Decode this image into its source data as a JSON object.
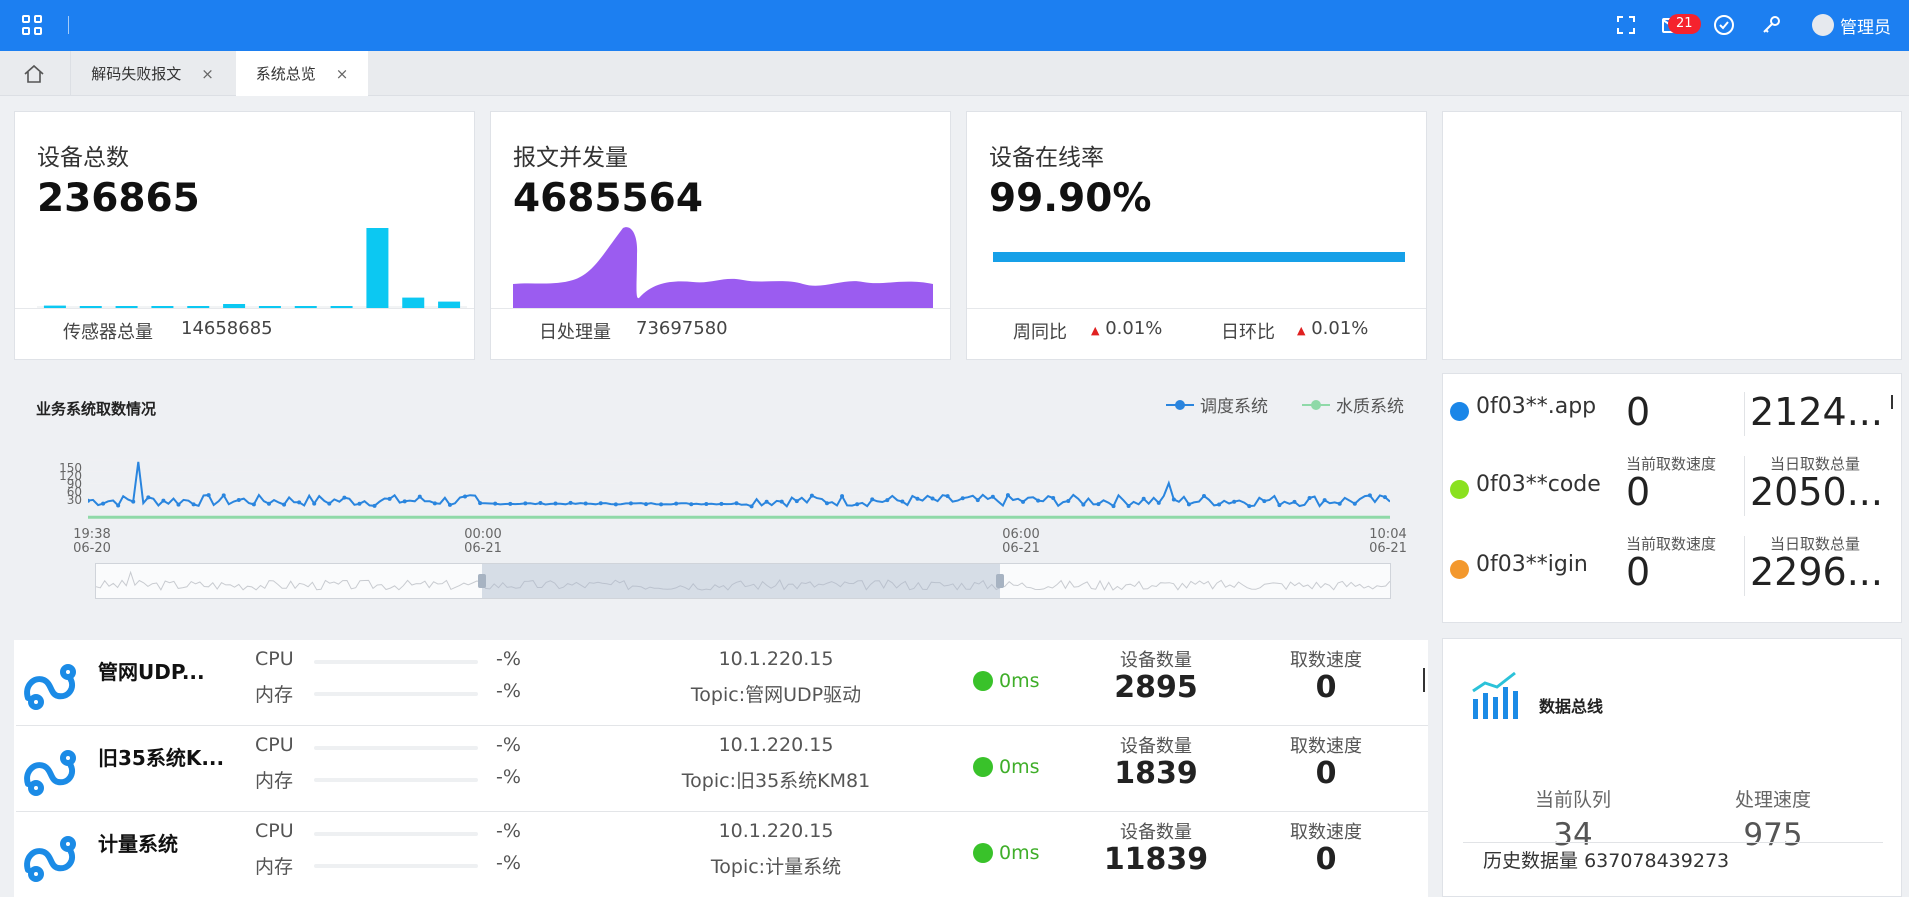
{
  "topbar": {
    "mail_badge": "21",
    "user_name": "管理员"
  },
  "tabs": [
    {
      "label": "解码失败报文",
      "close": "×"
    },
    {
      "label": "系统总览",
      "close": "×"
    }
  ],
  "kpis": {
    "devices": {
      "title": "设备总数",
      "value": "236865",
      "foot_label": "传感器总量",
      "foot_value": "14658685",
      "bars": [
        0.03,
        0.02,
        0.01,
        0.02,
        0.01,
        0.05,
        0.02,
        0.01,
        0.02,
        1.0,
        0.13,
        0.08
      ]
    },
    "messages": {
      "title": "报文并发量",
      "value": "4685564",
      "foot_label": "日处理量",
      "foot_value": "73697580"
    },
    "online": {
      "title": "设备在线率",
      "value": "99.90%",
      "progress": 0.999,
      "week_label": "周同比",
      "week_value": "0.01%",
      "day_label": "日环比",
      "day_value": "0.01%",
      "up_symbol": "▲"
    }
  },
  "chart_data": {
    "type": "line",
    "title": "业务系统取数情况",
    "x_ticks": [
      {
        "time": "19:38",
        "date": "06-20"
      },
      {
        "time": "00:00",
        "date": "06-21"
      },
      {
        "time": "06:00",
        "date": "06-21"
      },
      {
        "time": "10:04",
        "date": "06-21"
      }
    ],
    "y_ticks": [
      "150",
      "120",
      "90",
      "60",
      "30"
    ],
    "ylim": [
      0,
      150
    ],
    "legend_position": "top-right",
    "series": [
      {
        "name": "调度系统",
        "color": "#2a85de",
        "peak_value": 145,
        "typical_range": [
          30,
          60
        ]
      },
      {
        "name": "水质系统",
        "color": "#8fd9a8",
        "typical_range": [
          0,
          5
        ]
      }
    ]
  },
  "sources": [
    {
      "name": "0f03**.app",
      "color": "#1a86e8",
      "speed": "0",
      "total": "2124...",
      "speed_label": "当前取数速度",
      "total_label": "当日取数总量"
    },
    {
      "name": "0f03**code",
      "color": "#8ae11f",
      "speed": "0",
      "total": "2050...",
      "speed_label": "当前取数速度",
      "total_label": "当日取数总量"
    },
    {
      "name": "0f03**igin",
      "color": "#f3982d",
      "speed": "0",
      "total": "2296...",
      "speed_label": "当前取数速度",
      "total_label": "当日取数总量"
    }
  ],
  "drivers": [
    {
      "name": "管网UDP...",
      "cpu_label": "CPU",
      "mem_label": "内存",
      "cpu": "-%",
      "mem": "-%",
      "ip": "10.1.220.15",
      "topic": "Topic:管网UDP驱动",
      "latency": "0ms",
      "count_label": "设备数量",
      "count": "2895",
      "speed_label": "取数速度",
      "speed": "0"
    },
    {
      "name": "旧35系统K...",
      "cpu_label": "CPU",
      "mem_label": "内存",
      "cpu": "-%",
      "mem": "-%",
      "ip": "10.1.220.15",
      "topic": "Topic:旧35系统KM81",
      "latency": "0ms",
      "count_label": "设备数量",
      "count": "1839",
      "speed_label": "取数速度",
      "speed": "0"
    },
    {
      "name": "计量系统",
      "cpu_label": "CPU",
      "mem_label": "内存",
      "cpu": "-%",
      "mem": "-%",
      "ip": "10.1.220.15",
      "topic": "Topic:计量系统",
      "latency": "0ms",
      "count_label": "设备数量",
      "count": "11839",
      "speed_label": "取数速度",
      "speed": "0"
    }
  ],
  "bus": {
    "title": "数据总线",
    "queue_label": "当前队列",
    "queue_value": "34",
    "speed_label": "处理速度",
    "speed_value": "975",
    "history_label": "历史数据量",
    "history_value": "637078439273"
  }
}
